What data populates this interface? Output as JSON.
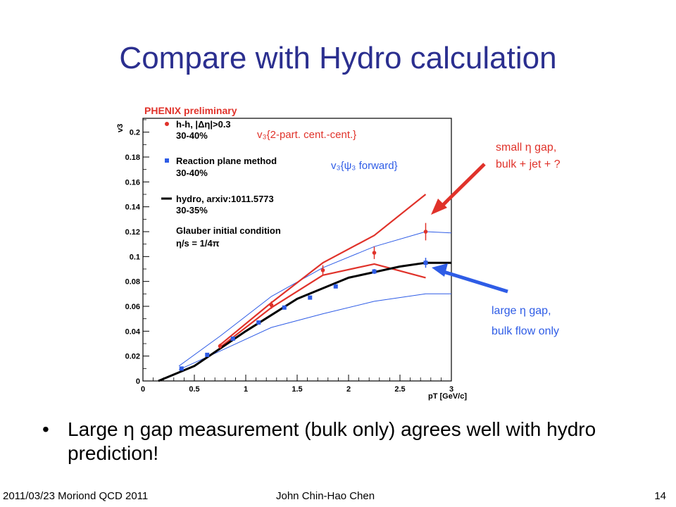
{
  "slide": {
    "title": "Compare with Hydro calculation",
    "bullet": "Large η gap measurement (bulk only) agrees well with hydro prediction!",
    "bullet_symbol": "•",
    "footer_left": "2011/03/23 Moriond QCD 2011",
    "footer_center": "John Chin-Hao Chen",
    "footer_right": "14"
  },
  "colors": {
    "title": "#2b2f8f",
    "red": "#e0322a",
    "blue": "#2e5ce6",
    "annotation_red": "#e0322a",
    "annotation_blue": "#2e5ce6"
  },
  "chart_data": {
    "type": "line",
    "title": "PHENIX preliminary",
    "xlabel": "p_T [GeV/c]",
    "ylabel": "v_3",
    "xlim": [
      0,
      3
    ],
    "ylim": [
      0,
      0.21
    ],
    "x_ticks": [
      "0",
      "0.5",
      "1",
      "1.5",
      "2",
      "2.5",
      "3"
    ],
    "y_ticks": [
      "0",
      "0.02",
      "0.04",
      "0.06",
      "0.08",
      "0.1",
      "0.12",
      "0.14",
      "0.16",
      "0.18",
      "0.2"
    ],
    "legend": [
      {
        "marker": "red-dot",
        "label": "h-h, |Δη|>0.3",
        "sub": "30-40%"
      },
      {
        "marker": "blue-square",
        "label": "Reaction plane method",
        "sub": "30-40%"
      },
      {
        "marker": "black-line",
        "label": "hydro, arxiv:1011.5773",
        "sub": "30-35%"
      }
    ],
    "notes": [
      "Glauber initial condition",
      "η/s = 1/4π"
    ],
    "inner_labels": {
      "red": "v₃{2-part. cent.-cent.}",
      "blue": "v₃{ψ₃ forward}"
    },
    "series": [
      {
        "name": "h-h, |Δη|>0.3",
        "style": "red-points",
        "x": [
          0.75,
          1.25,
          1.75,
          2.25,
          2.75
        ],
        "y": [
          0.028,
          0.061,
          0.089,
          0.103,
          0.12
        ],
        "err": [
          0.002,
          0.003,
          0.004,
          0.005,
          0.007
        ]
      },
      {
        "name": "Reaction plane method",
        "style": "blue-points",
        "x": [
          0.375,
          0.625,
          0.875,
          1.125,
          1.375,
          1.625,
          1.875,
          2.25,
          2.75
        ],
        "y": [
          0.01,
          0.021,
          0.034,
          0.047,
          0.059,
          0.067,
          0.076,
          0.088,
          0.095
        ],
        "err": [
          0.001,
          0.001,
          0.001,
          0.001,
          0.001,
          0.001,
          0.001,
          0.002,
          0.004
        ]
      },
      {
        "name": "hydro, arxiv:1011.5773",
        "style": "black-line",
        "x": [
          0.15,
          0.5,
          1.0,
          1.5,
          2.0,
          2.5,
          2.75,
          3.0
        ],
        "y": [
          0.0,
          0.012,
          0.04,
          0.066,
          0.083,
          0.092,
          0.095,
          0.095
        ]
      },
      {
        "style": "red-band-upper",
        "x": [
          0.75,
          1.25,
          1.75,
          2.25,
          2.75
        ],
        "y": [
          0.029,
          0.063,
          0.095,
          0.117,
          0.15
        ]
      },
      {
        "style": "red-band-lower",
        "x": [
          0.75,
          1.25,
          1.75,
          2.25,
          2.75
        ],
        "y": [
          0.027,
          0.059,
          0.085,
          0.094,
          0.083
        ]
      },
      {
        "style": "blue-band-upper",
        "x": [
          0.35,
          0.75,
          1.25,
          1.75,
          2.25,
          2.75,
          3.0
        ],
        "y": [
          0.012,
          0.036,
          0.068,
          0.091,
          0.108,
          0.12,
          0.119
        ]
      },
      {
        "style": "blue-band-lower",
        "x": [
          0.35,
          0.75,
          1.25,
          1.75,
          2.25,
          2.75,
          3.0
        ],
        "y": [
          0.009,
          0.024,
          0.043,
          0.054,
          0.064,
          0.07,
          0.07
        ]
      }
    ]
  },
  "annotations": {
    "small_gap": [
      "small η gap,",
      "bulk + jet + ?"
    ],
    "large_gap": [
      "large η gap,",
      "bulk flow only"
    ]
  }
}
